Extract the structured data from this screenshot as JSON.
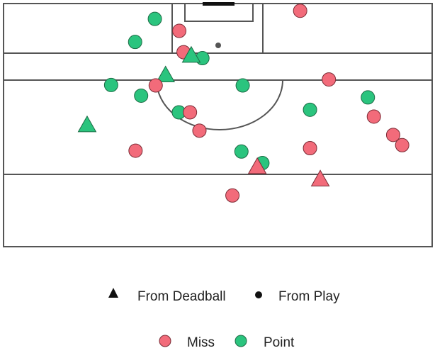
{
  "chart_data": {
    "type": "scatter",
    "title": "",
    "xlabel": "",
    "ylabel": "",
    "grid": false,
    "legend_placement": "bottom",
    "xlim": [
      0,
      100
    ],
    "ylim": [
      0,
      57
    ],
    "legends": {
      "shape": {
        "title": "",
        "entries": [
          {
            "label": "From Deadball",
            "shape": "triangle"
          },
          {
            "label": "From Play",
            "shape": "circle"
          }
        ]
      },
      "fill": {
        "title": "",
        "entries": [
          {
            "label": "Miss",
            "color": "#f26b7a"
          },
          {
            "label": "Point",
            "color": "#2bc47e"
          }
        ]
      }
    },
    "points": [
      {
        "x": 69.2,
        "y": 1.7,
        "result": "Miss",
        "type": "From Play"
      },
      {
        "x": 35.3,
        "y": 3.6,
        "result": "Point",
        "type": "From Play"
      },
      {
        "x": 41.0,
        "y": 6.4,
        "result": "Miss",
        "type": "From Play"
      },
      {
        "x": 30.7,
        "y": 9.0,
        "result": "Point",
        "type": "From Play"
      },
      {
        "x": 42.0,
        "y": 11.4,
        "result": "Miss",
        "type": "From Play"
      },
      {
        "x": 46.4,
        "y": 12.8,
        "result": "Point",
        "type": "From Play"
      },
      {
        "x": 43.8,
        "y": 12.3,
        "result": "Point",
        "type": "From Deadball"
      },
      {
        "x": 37.8,
        "y": 16.9,
        "result": "Point",
        "type": "From Deadball"
      },
      {
        "x": 75.9,
        "y": 17.8,
        "result": "Miss",
        "type": "From Play"
      },
      {
        "x": 25.1,
        "y": 19.1,
        "result": "Point",
        "type": "From Play"
      },
      {
        "x": 35.5,
        "y": 19.2,
        "result": "Miss",
        "type": "From Play"
      },
      {
        "x": 55.8,
        "y": 19.2,
        "result": "Point",
        "type": "From Play"
      },
      {
        "x": 32.1,
        "y": 21.6,
        "result": "Point",
        "type": "From Play"
      },
      {
        "x": 85.0,
        "y": 22.0,
        "result": "Point",
        "type": "From Play"
      },
      {
        "x": 71.5,
        "y": 24.9,
        "result": "Point",
        "type": "From Play"
      },
      {
        "x": 40.9,
        "y": 25.5,
        "result": "Point",
        "type": "From Play"
      },
      {
        "x": 43.5,
        "y": 25.5,
        "result": "Miss",
        "type": "From Play"
      },
      {
        "x": 86.4,
        "y": 26.5,
        "result": "Miss",
        "type": "From Play"
      },
      {
        "x": 19.5,
        "y": 28.6,
        "result": "Point",
        "type": "From Deadball"
      },
      {
        "x": 45.7,
        "y": 29.8,
        "result": "Miss",
        "type": "From Play"
      },
      {
        "x": 90.9,
        "y": 30.8,
        "result": "Miss",
        "type": "From Play"
      },
      {
        "x": 93.0,
        "y": 33.2,
        "result": "Miss",
        "type": "From Play"
      },
      {
        "x": 71.5,
        "y": 33.9,
        "result": "Miss",
        "type": "From Play"
      },
      {
        "x": 30.8,
        "y": 34.5,
        "result": "Miss",
        "type": "From Play"
      },
      {
        "x": 55.5,
        "y": 34.7,
        "result": "Point",
        "type": "From Play"
      },
      {
        "x": 60.4,
        "y": 37.4,
        "result": "Point",
        "type": "From Play"
      },
      {
        "x": 59.2,
        "y": 38.4,
        "result": "Miss",
        "type": "From Deadball"
      },
      {
        "x": 73.9,
        "y": 41.3,
        "result": "Miss",
        "type": "From Deadball"
      },
      {
        "x": 53.4,
        "y": 45.0,
        "result": "Miss",
        "type": "From Play"
      }
    ]
  }
}
